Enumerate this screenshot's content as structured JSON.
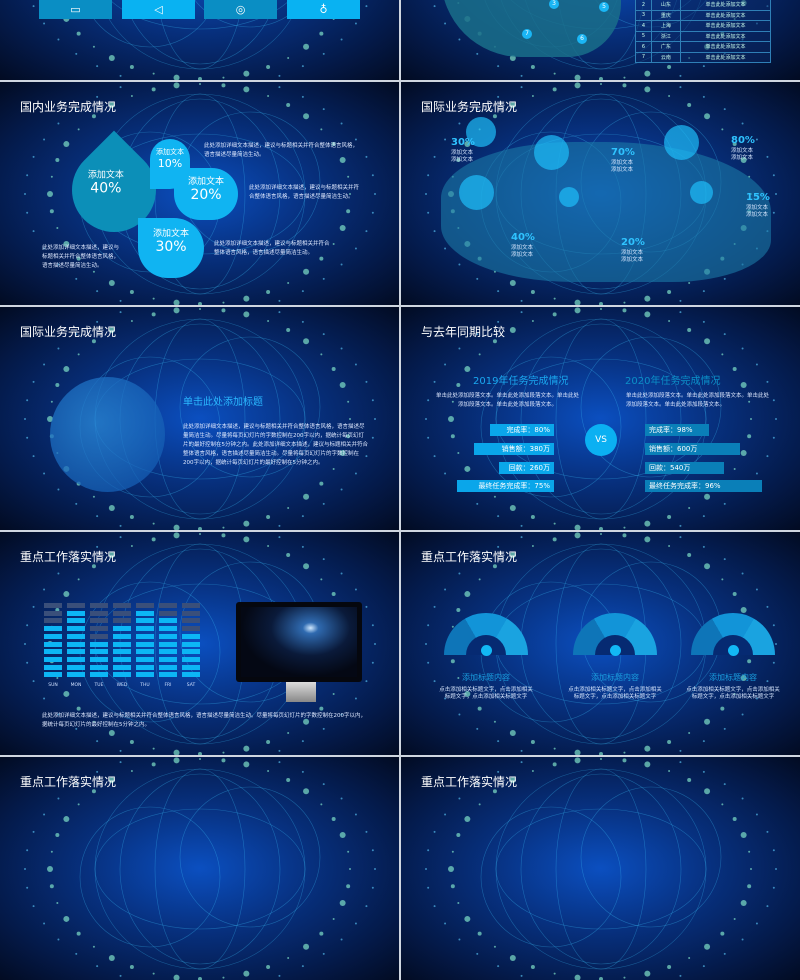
{
  "slide_top_left": {
    "buttons": [
      {
        "icon": "monitor-icon",
        "color": "#0a8ec4"
      },
      {
        "icon": "play-icon",
        "color": "#09b2f2"
      },
      {
        "icon": "camera-icon",
        "color": "#0a8ec4"
      },
      {
        "icon": "lightbulb-icon",
        "color": "#09b2f2"
      }
    ]
  },
  "slide_top_right": {
    "markers": [
      "3",
      "5",
      "7",
      "6"
    ],
    "table": [
      [
        "2",
        "山东",
        "单击此处添加文本"
      ],
      [
        "3",
        "重庆",
        "单击此处添加文本"
      ],
      [
        "4",
        "上海",
        "单击此处添加文本"
      ],
      [
        "5",
        "浙江",
        "单击此处添加文本"
      ],
      [
        "6",
        "广东",
        "单击此处添加文本"
      ],
      [
        "7",
        "云南",
        "单击此处添加文本"
      ]
    ]
  },
  "domestic": {
    "title": "国内业务完成情况",
    "petals": [
      {
        "label": "添加文本",
        "value": "40%"
      },
      {
        "label": "添加文本",
        "value": "10%"
      },
      {
        "label": "添加文本",
        "value": "20%"
      },
      {
        "label": "添加文本",
        "value": "30%"
      }
    ],
    "desc1": "此处添加详细文本描述，建议与标题相关并符合整体语言风格，语言描述尽量简洁生动。",
    "desc2": "此处添加详细文本描述，建议与标题相关并符合整体语言风格，语言描述尽量简洁生动。",
    "desc3": "此处添加详细文本描述，建议与标题相关并符合整体语言风格，语言描述尽量简洁生动。",
    "desc4": "此处添加详细文本描述，建议与标题相关并符合整体语言风格，语言描述尽量简洁生动。"
  },
  "international_map": {
    "title": "国际业务完成情况",
    "items": [
      {
        "value": "30%",
        "label1": "添加文本",
        "label2": "添加文本"
      },
      {
        "value": "70%",
        "label1": "添加文本",
        "label2": "添加文本"
      },
      {
        "value": "80%",
        "label1": "添加文本",
        "label2": "添加文本"
      },
      {
        "value": "15%",
        "label1": "添加文本",
        "label2": "添加文本"
      },
      {
        "value": "40%",
        "label1": "添加文本",
        "label2": "添加文本"
      },
      {
        "value": "20%",
        "label1": "添加文本",
        "label2": "添加文本"
      }
    ]
  },
  "international_globe": {
    "title": "国际业务完成情况",
    "heading": "单击此处添加标题",
    "body": "此处添加详细文本描述，建议与标题相关并符合整体语言风格，语言描述尽量简洁生动。尽量将每页幻灯片的字数控制在200字以内，据统计每页幻灯片的最好控制在5分钟之内。此处添加详细文本描述，建议与标题相关并符合整体语言风格，语言描述尽量简洁生动。尽量将每页幻灯片的字数控制在200字以内，据统计每页幻灯片的最好控制在5分钟之内。"
  },
  "compare": {
    "title": "与去年同期比较",
    "vs": "VS",
    "left": {
      "heading": "2019年任务完成情况",
      "body": "单击此处添加段落文本。单击此处添加段落文本。单击此处添加段落文本。单击此处添加段落文本。",
      "bars": [
        "完成率：80%",
        "销售额：380万",
        "回款：260万",
        "最终任务完成率：75%"
      ]
    },
    "right": {
      "heading": "2020年任务完成情况",
      "body": "单击此处添加段落文本。单击此处添加段落文本。单击此处添加段落文本。单击此处添加段落文本。",
      "bars": [
        "完成率：98%",
        "销售额：600万",
        "回款：540万",
        "最终任务完成率：96%"
      ]
    }
  },
  "work_bars": {
    "title": "重点工作落实情况",
    "days": [
      "SUN",
      "MON",
      "TUE",
      "WED",
      "THU",
      "FRI",
      "SAT"
    ],
    "levels_of_10": [
      7,
      9,
      5,
      7,
      9,
      8,
      6
    ],
    "body": "此处添加详细文本描述，建议与标题相关并符合整体语言风格，语言描述尽量简洁生动。尽量将每页幻灯片的字数控制在200字以内，据统计每页幻灯片的最好控制在5分钟之内。"
  },
  "work_gauges": {
    "title": "重点工作落实情况",
    "items": [
      {
        "heading": "添加标题内容",
        "body": "点击添加相关标题文字，点击添加相关标题文字，点击添加相关标题文字"
      },
      {
        "heading": "添加标题内容",
        "body": "点击添加相关标题文字，点击添加相关标题文字，点击添加相关标题文字"
      },
      {
        "heading": "添加标题内容",
        "body": "点击添加相关标题文字，点击添加相关标题文字，点击添加相关标题文字"
      }
    ]
  },
  "bottom_left": {
    "title": "重点工作落实情况"
  },
  "bottom_right": {
    "title": "重点工作落实情况"
  },
  "colors": {
    "accent": "#10b4f2",
    "background": "#07307e",
    "dots": "#7fe0c8"
  }
}
